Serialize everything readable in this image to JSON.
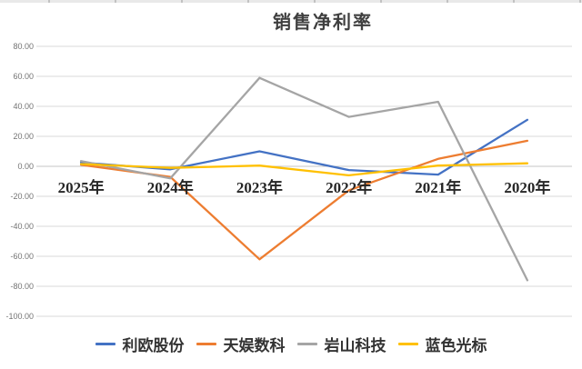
{
  "chart_data": {
    "type": "line",
    "title": "销售净利率",
    "categories": [
      "2025年",
      "2024年",
      "2023年",
      "2022年",
      "2021年",
      "2020年"
    ],
    "series": [
      {
        "name": "利欧股份",
        "color": "#4472C4",
        "values": [
          2.5,
          -2,
          10,
          -2.5,
          -5.5,
          31
        ]
      },
      {
        "name": "天娱数科",
        "color": "#ED7D31",
        "values": [
          1,
          -7,
          -62,
          -16,
          5,
          17
        ]
      },
      {
        "name": "岩山科技",
        "color": "#A5A5A5",
        "values": [
          3.5,
          -8,
          59,
          33,
          43,
          -76
        ]
      },
      {
        "name": "蓝色光标",
        "color": "#FFC000",
        "values": [
          1.5,
          -1,
          0.5,
          -6,
          0.5,
          2
        ]
      }
    ],
    "y_axis": {
      "min": -100,
      "max": 80,
      "step": 20,
      "tick_labels": [
        "80.00",
        "60.00",
        "40.00",
        "20.00",
        "0.00",
        "-20.00",
        "-40.00",
        "-60.00",
        "-80.00",
        "-100.00"
      ]
    },
    "grid": true,
    "legend_position": "bottom",
    "colors": {
      "gridline": "#D9D9D9",
      "zero_line": "#C6C6C6",
      "tick_text": "#737373",
      "category_text": "#262626",
      "title_text": "#3F3F3F"
    }
  }
}
